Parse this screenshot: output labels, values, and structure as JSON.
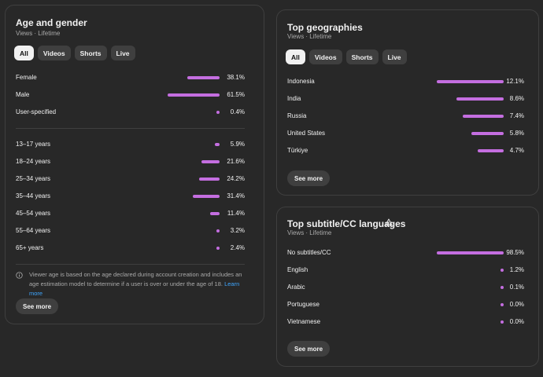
{
  "age_gender": {
    "title": "Age and gender",
    "subtitle": "Views · Lifetime",
    "chips": [
      "All",
      "Videos",
      "Shorts",
      "Live"
    ],
    "gender_rows": [
      {
        "label": "Female",
        "value": "38.1%",
        "fraction": 0.381
      },
      {
        "label": "Male",
        "value": "61.5%",
        "fraction": 0.615
      },
      {
        "label": "User-specified",
        "value": "0.4%",
        "fraction": 0.004
      }
    ],
    "age_rows": [
      {
        "label": "13–17 years",
        "value": "5.9%",
        "fraction": 0.059
      },
      {
        "label": "18–24 years",
        "value": "21.6%",
        "fraction": 0.216
      },
      {
        "label": "25–34 years",
        "value": "24.2%",
        "fraction": 0.242
      },
      {
        "label": "35–44 years",
        "value": "31.4%",
        "fraction": 0.314
      },
      {
        "label": "45–54 years",
        "value": "11.4%",
        "fraction": 0.114
      },
      {
        "label": "55–64 years",
        "value": "3.2%",
        "fraction": 0.032
      },
      {
        "label": "65+ years",
        "value": "2.4%",
        "fraction": 0.024
      }
    ],
    "info_text": "Viewer age is based on the age declared during account creation and includes an age estimation model to determine if a user is over or under the age of 18.",
    "learn_more": "Learn more",
    "see_more": "See more",
    "bar_color": "#c46ee0"
  },
  "geographies": {
    "title": "Top geographies",
    "subtitle": "Views · Lifetime",
    "chips": [
      "All",
      "Videos",
      "Shorts",
      "Live"
    ],
    "rows": [
      {
        "label": "Indonesia",
        "value": "12.1%",
        "fraction": 0.121
      },
      {
        "label": "India",
        "value": "8.6%",
        "fraction": 0.086
      },
      {
        "label": "Russia",
        "value": "7.4%",
        "fraction": 0.074
      },
      {
        "label": "United States",
        "value": "5.8%",
        "fraction": 0.058
      },
      {
        "label": "Türkiye",
        "value": "4.7%",
        "fraction": 0.047
      }
    ],
    "see_more": "See more"
  },
  "subtitles": {
    "title": "Top subtitle/CC languages",
    "subtitle": "Views · Lifetime",
    "warning_icon": "warning-triangle-icon",
    "rows": [
      {
        "label": "No subtitles/CC",
        "value": "98.5%",
        "fraction": 0.985
      },
      {
        "label": "English",
        "value": "1.2%",
        "fraction": 0.012
      },
      {
        "label": "Arabic",
        "value": "0.1%",
        "fraction": 0.001
      },
      {
        "label": "Portuguese",
        "value": "0.0%",
        "fraction": 0.0
      },
      {
        "label": "Vietnamese",
        "value": "0.0%",
        "fraction": 0.0
      }
    ],
    "see_more": "See more"
  }
}
